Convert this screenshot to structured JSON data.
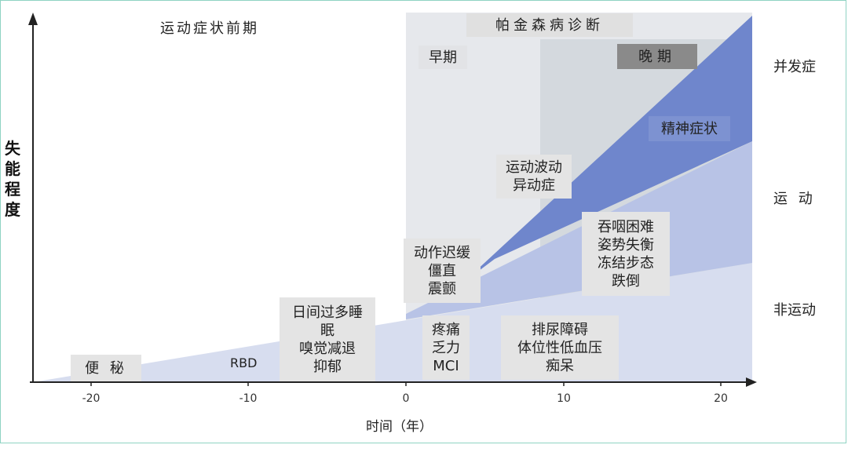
{
  "y_axis_label": "失能程度",
  "x_axis_label": "时间（年）",
  "x_ticks": [
    "-20",
    "-10",
    "0",
    "10",
    "20"
  ],
  "prodromal_label": "运动症状前期",
  "diagnosis_label": "帕金森病诊断",
  "early_label": "早期",
  "late_label": "晚期",
  "right_labels": {
    "complications": "并发症",
    "motor": "运 动",
    "nonmotor": "非运动"
  },
  "symptom_boxes": {
    "constipation": "便 秘",
    "rbd": "RBD",
    "sleep": [
      "日间过多睡",
      "眠",
      "嗅觉减退",
      "抑郁"
    ],
    "pain": [
      "疼痛",
      "乏力",
      "MCI"
    ],
    "motor_early": [
      "动作迟缓",
      "僵直",
      "震颤"
    ],
    "urinary": [
      "排尿障碍",
      "体位性低血压",
      "痴呆"
    ],
    "fluctuation": [
      "运动波动",
      "异动症"
    ],
    "axial": [
      "吞咽困难",
      "姿势失衡",
      "冻结步态",
      "跌倒"
    ],
    "psychiatric": "精神症状"
  },
  "colors": {
    "frame": "#8fd3c3",
    "diagnosis_region": "#e6e8ec",
    "late_region": "#d4d9de",
    "nonmotor": "#d7ddef",
    "motor": "#b8c3e6",
    "complications": "#6f86cc",
    "late_box": "#8a8a8a"
  }
}
